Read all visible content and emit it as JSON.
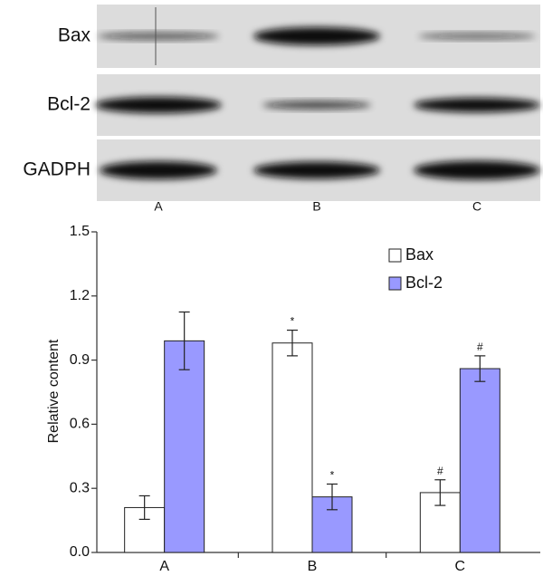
{
  "blot": {
    "rows": [
      "Bax",
      "Bcl-2",
      "GADPH"
    ],
    "lanes": [
      "A",
      "B",
      "C"
    ]
  },
  "chart_data": {
    "type": "bar",
    "y_label": "Relative content",
    "categories": [
      "A",
      "B",
      "C"
    ],
    "series": [
      {
        "name": "Bax",
        "color": "#ffffff",
        "values": [
          0.21,
          0.98,
          0.28
        ],
        "errors": [
          0.055,
          0.06,
          0.06
        ],
        "markers": [
          null,
          "*",
          "#"
        ]
      },
      {
        "name": "Bcl-2",
        "color": "#9999ff",
        "values": [
          0.99,
          0.26,
          0.86
        ],
        "errors": [
          0.135,
          0.06,
          0.06
        ],
        "markers": [
          null,
          "*",
          "#"
        ]
      }
    ],
    "ylim": [
      0,
      1.5
    ],
    "yticks": [
      {
        "value": 0,
        "label": "0.0"
      },
      0.3,
      0.6,
      0.9,
      1.2,
      1.5
    ],
    "legend": "top-right",
    "grid": false
  }
}
